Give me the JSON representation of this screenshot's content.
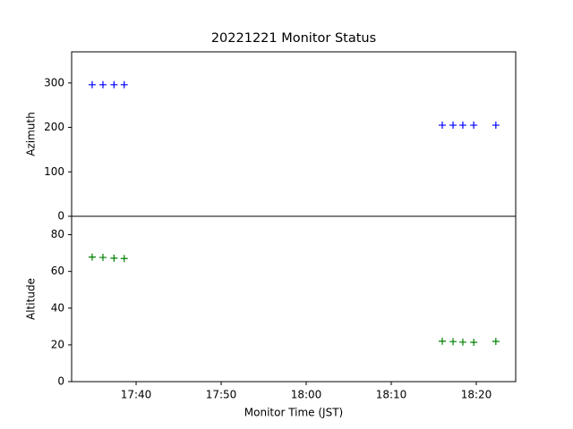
{
  "chart_data": [
    {
      "type": "scatter",
      "title": "20221221 Monitor Status",
      "ylabel": "Azimuth",
      "x": [
        "17:34:50",
        "17:36:06",
        "17:37:24",
        "17:38:36",
        "18:16:00",
        "18:17:16",
        "18:18:25",
        "18:19:42",
        "18:22:18"
      ],
      "series": [
        {
          "color": "#0000ff",
          "values": [
            296,
            296,
            296,
            296,
            205,
            205,
            205,
            205,
            205
          ]
        }
      ],
      "xlim": [
        "17:32:25",
        "18:24:38"
      ],
      "ylim": [
        0,
        370
      ],
      "yticks": [
        0,
        100,
        200,
        300
      ]
    },
    {
      "type": "scatter",
      "xlabel": "Monitor Time (JST)",
      "ylabel": "Altitude",
      "x": [
        "17:34:50",
        "17:36:06",
        "17:37:24",
        "17:38:36",
        "18:16:00",
        "18:17:16",
        "18:18:25",
        "18:19:42",
        "18:22:18"
      ],
      "series": [
        {
          "color": "#008000",
          "values": [
            67.8,
            67.6,
            67.2,
            67.0,
            22.0,
            21.8,
            21.5,
            21.4,
            21.9
          ]
        }
      ],
      "xlim": [
        "17:32:25",
        "18:24:38"
      ],
      "ylim": [
        0,
        90
      ],
      "yticks": [
        0,
        20,
        40,
        60,
        80
      ],
      "xticks": [
        "17:40",
        "17:50",
        "18:00",
        "18:10",
        "18:20"
      ]
    }
  ]
}
